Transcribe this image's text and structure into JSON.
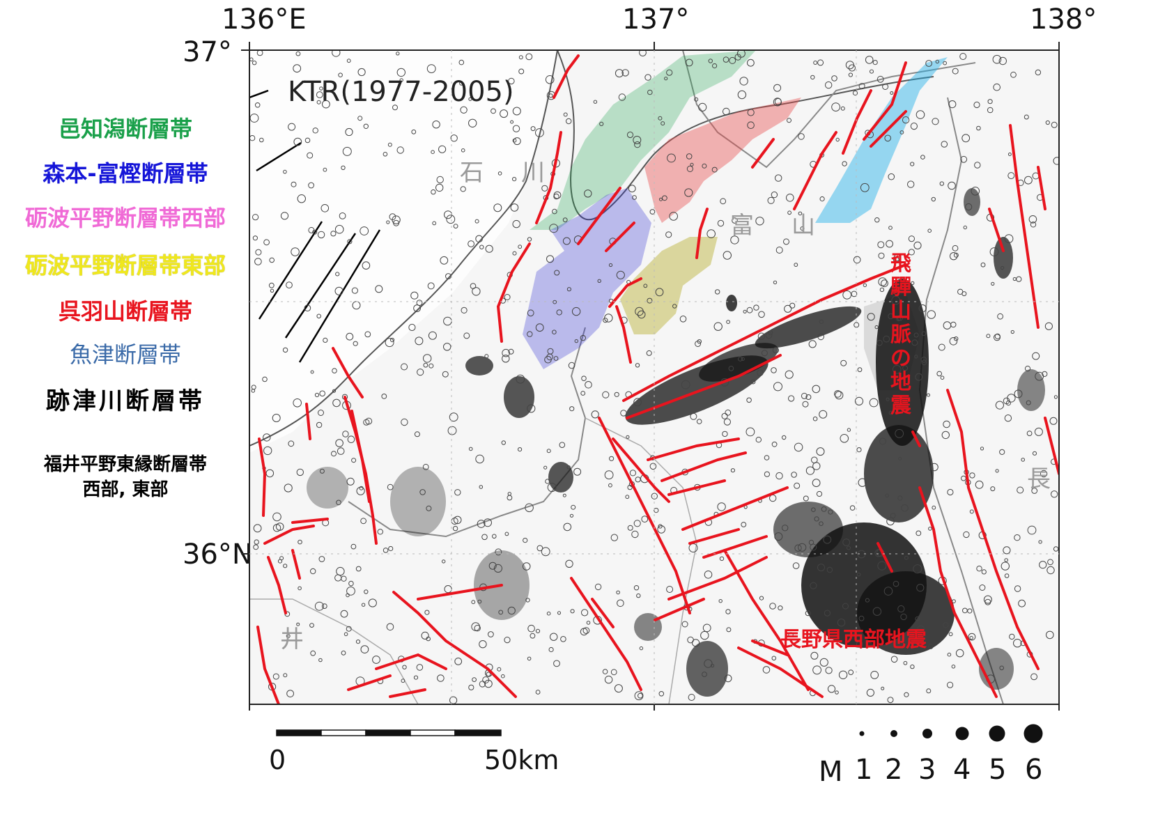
{
  "legend": [
    {
      "label": "邑知潟断層帯",
      "color": "#1aa04a"
    },
    {
      "label": "森本-富樫断層帯",
      "color": "#1515d8"
    },
    {
      "label": "砺波平野断層帯西部",
      "color": "#f06ad6"
    },
    {
      "label": "砺波平野断層帯東部",
      "color": "#f0e81c"
    },
    {
      "label": "呉羽山断層帯",
      "color": "#e8141e"
    },
    {
      "label": "魚津断層帯",
      "color": "#3a6aa8"
    },
    {
      "label": "跡津川断層帯",
      "color": "#000000"
    },
    {
      "label": "福井平野東縁断層帯",
      "color": "#000000"
    },
    {
      "label": "西部, 東部",
      "color": "#000000"
    }
  ],
  "axes": {
    "lon_136": "136°E",
    "lon_137": "137°",
    "lon_138": "138°",
    "lat_37": "37°",
    "lat_36": "36°N"
  },
  "map": {
    "title": "KTR(1977-2005)",
    "prefecture_chars": [
      "石",
      "川",
      "富",
      "山",
      "井",
      "長"
    ],
    "hida_label": "飛驒山脈の地震",
    "nagano_label": "長野県西部地震",
    "fault_color": "#e8141e"
  },
  "scale_bar": {
    "start": "0",
    "end": "50km"
  },
  "magnitude_legend": {
    "prefix": "M",
    "values": [
      "1",
      "2",
      "3",
      "4",
      "5",
      "6"
    ]
  }
}
